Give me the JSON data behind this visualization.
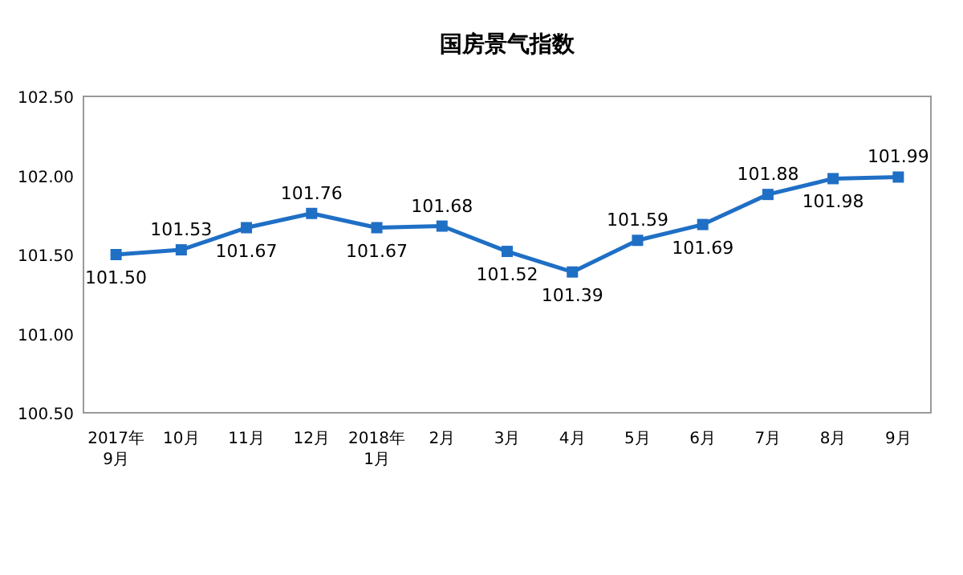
{
  "chart_data": {
    "type": "line",
    "title": "国房景气指数",
    "categories": [
      "2017年\n9月",
      "10月",
      "11月",
      "12月",
      "2018年\n1月",
      "2月",
      "3月",
      "4月",
      "5月",
      "6月",
      "7月",
      "8月",
      "9月"
    ],
    "values": [
      101.5,
      101.53,
      101.67,
      101.76,
      101.67,
      101.68,
      101.52,
      101.39,
      101.59,
      101.69,
      101.88,
      101.98,
      101.99
    ],
    "value_labels": [
      "101.50",
      "101.53",
      "101.67",
      "101.76",
      "101.67",
      "101.68",
      "101.52",
      "101.39",
      "101.59",
      "101.69",
      "101.88",
      "101.98",
      "101.99"
    ],
    "color": "#1f6fc5",
    "marker": "square",
    "ylim": [
      100.5,
      102.5
    ],
    "yticks": [
      {
        "value": 100.5,
        "label": "100.50"
      },
      {
        "value": 101,
        "label": "101.00"
      },
      {
        "value": 101.5,
        "label": "101.50"
      },
      {
        "value": 102,
        "label": "102.00"
      },
      {
        "value": 102.5,
        "label": "102.50"
      }
    ]
  }
}
